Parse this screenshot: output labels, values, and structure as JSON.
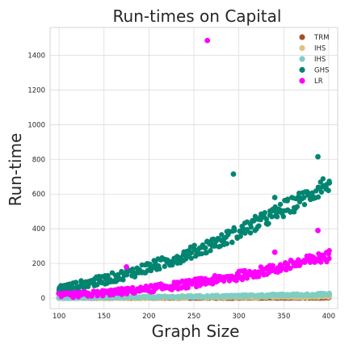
{
  "chart_data": {
    "type": "scatter",
    "title": "Run-times on Capital",
    "xlabel": "Graph Size",
    "ylabel": "Run-time",
    "xlim": [
      90,
      410
    ],
    "ylim": [
      -60,
      1560
    ],
    "xticks": [
      100,
      150,
      200,
      250,
      300,
      350,
      400
    ],
    "yticks": [
      0,
      200,
      400,
      600,
      800,
      1000,
      1200,
      1400
    ],
    "grid": true,
    "legend_position": "top-right",
    "series": [
      {
        "name": "TRM",
        "color": "#a0522d",
        "model": {
          "a": 0,
          "b": 2.0,
          "c": 1.3,
          "noise": 2
        }
      },
      {
        "name": "IHS",
        "color": "#dfc27d",
        "model": {
          "a": 0,
          "b": 10.0,
          "c": 1.6,
          "noise": 4
        }
      },
      {
        "name": "IHS",
        "color": "#80cdc1",
        "model": {
          "a": 0,
          "b": 22.0,
          "c": 1.8,
          "noise": 6
        }
      },
      {
        "name": "GHS",
        "color": "#018571",
        "model": {
          "a": 15,
          "b": 650,
          "c": 2.0,
          "noise": 40
        },
        "outliers": [
          [
            294,
            715
          ],
          [
            388,
            815
          ],
          [
            340,
            580
          ]
        ]
      },
      {
        "name": "LR",
        "color": "#ff00ff",
        "model": {
          "a": 5,
          "b": 240,
          "c": 2.3,
          "noise": 25
        },
        "outliers": [
          [
            265,
            1485
          ],
          [
            388,
            390
          ],
          [
            340,
            265
          ],
          [
            175,
            180
          ]
        ]
      }
    ]
  }
}
